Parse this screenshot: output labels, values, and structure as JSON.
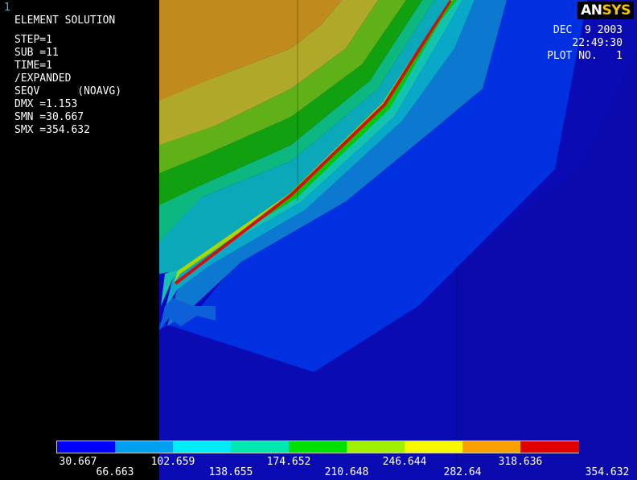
{
  "window_number": "1",
  "logo": {
    "part1": "AN",
    "part2": "SYS"
  },
  "info": {
    "title": "ELEMENT SOLUTION",
    "step": "STEP=1",
    "sub": "SUB =11",
    "time": "TIME=1",
    "expanded": "/EXPANDED",
    "seqv": "SEQV      (NOAVG)",
    "dmx": "DMX =1.153",
    "smn": "SMN =30.667",
    "smx": "SMX =354.632"
  },
  "stamp": {
    "date": "DEC  9 2003",
    "time": "22:49:30",
    "plot": "PLOT NO.   1"
  },
  "legend": {
    "colors": [
      "#0000ff",
      "#00a0f0",
      "#00ecf8",
      "#00e8b0",
      "#00e000",
      "#a0f000",
      "#f8f800",
      "#f8a000",
      "#e00000"
    ],
    "labels": [
      "30.667",
      "66.663",
      "102.659",
      "138.655",
      "174.652",
      "210.648",
      "246.644",
      "282.64",
      "318.636",
      "354.632"
    ]
  },
  "palette": {
    "background": "#000000",
    "deep_blue": "#1010c8",
    "blue": "#0000d8",
    "mid_blue": "#1468d0",
    "cyan_blue": "#0aa0c8",
    "cyan": "#10c8c0",
    "green": "#10b010",
    "yellow_green": "#8cb418",
    "olive": "#b4a828",
    "orange_brown": "#c48c18",
    "red": "#c81010"
  }
}
